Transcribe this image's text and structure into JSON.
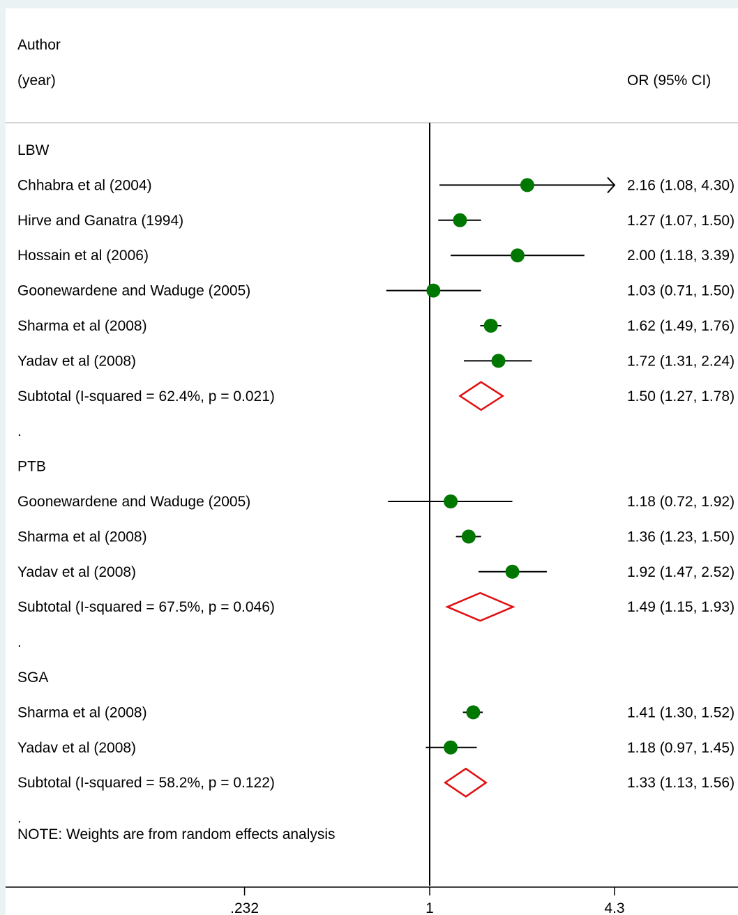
{
  "header": {
    "author_label": "Author",
    "year_label": "(year)",
    "or_label": "OR (95% CI)"
  },
  "note": "NOTE: Weights are from random effects analysis",
  "chart_data": {
    "type": "forest",
    "x_scale": "log",
    "xlim": [
      0.232,
      4.3
    ],
    "xticks": [
      {
        "value": 0.232,
        "label": ".232"
      },
      {
        "value": 1,
        "label": "1"
      },
      {
        "value": 4.3,
        "label": "4.3"
      }
    ],
    "null_line": 1,
    "colors": {
      "study_point": "#007700",
      "subtotal_diamond": "#e01010"
    },
    "rows": [
      {
        "kind": "group",
        "label": "LBW"
      },
      {
        "kind": "study",
        "label": "Chhabra et al (2004)",
        "est": 2.16,
        "lo": 1.08,
        "hi": 4.3,
        "ci_text": "2.16 (1.08, 4.30)",
        "arrow_right": true
      },
      {
        "kind": "study",
        "label": "Hirve and Ganatra (1994)",
        "est": 1.27,
        "lo": 1.07,
        "hi": 1.5,
        "ci_text": "1.27 (1.07, 1.50)"
      },
      {
        "kind": "study",
        "label": "Hossain et al (2006)",
        "est": 2.0,
        "lo": 1.18,
        "hi": 3.39,
        "ci_text": "2.00 (1.18, 3.39)"
      },
      {
        "kind": "study",
        "label": "Goonewardene and Waduge (2005)",
        "est": 1.03,
        "lo": 0.71,
        "hi": 1.5,
        "ci_text": "1.03 (0.71, 1.50)"
      },
      {
        "kind": "study",
        "label": "Sharma et al (2008)",
        "est": 1.62,
        "lo": 1.49,
        "hi": 1.76,
        "ci_text": "1.62 (1.49, 1.76)"
      },
      {
        "kind": "study",
        "label": "Yadav et al (2008)",
        "est": 1.72,
        "lo": 1.31,
        "hi": 2.24,
        "ci_text": "1.72 (1.31, 2.24)"
      },
      {
        "kind": "subtotal",
        "label": "Subtotal  (I-squared = 62.4%, p = 0.021)",
        "est": 1.5,
        "lo": 1.27,
        "hi": 1.78,
        "ci_text": "1.50 (1.27, 1.78)"
      },
      {
        "kind": "spacer",
        "label": "."
      },
      {
        "kind": "group",
        "label": "PTB"
      },
      {
        "kind": "study",
        "label": "Goonewardene and Waduge (2005)",
        "est": 1.18,
        "lo": 0.72,
        "hi": 1.92,
        "ci_text": "1.18 (0.72, 1.92)"
      },
      {
        "kind": "study",
        "label": "Sharma et al (2008)",
        "est": 1.36,
        "lo": 1.23,
        "hi": 1.5,
        "ci_text": "1.36 (1.23, 1.50)"
      },
      {
        "kind": "study",
        "label": "Yadav et al (2008)",
        "est": 1.92,
        "lo": 1.47,
        "hi": 2.52,
        "ci_text": "1.92 (1.47, 2.52)"
      },
      {
        "kind": "subtotal",
        "label": "Subtotal  (I-squared = 67.5%, p = 0.046)",
        "est": 1.49,
        "lo": 1.15,
        "hi": 1.93,
        "ci_text": "1.49 (1.15, 1.93)"
      },
      {
        "kind": "spacer",
        "label": "."
      },
      {
        "kind": "group",
        "label": "SGA"
      },
      {
        "kind": "study",
        "label": "Sharma et al (2008)",
        "est": 1.41,
        "lo": 1.3,
        "hi": 1.52,
        "ci_text": "1.41 (1.30, 1.52)"
      },
      {
        "kind": "study",
        "label": "Yadav et al (2008)",
        "est": 1.18,
        "lo": 0.97,
        "hi": 1.45,
        "ci_text": "1.18 (0.97, 1.45)"
      },
      {
        "kind": "subtotal",
        "label": "Subtotal  (I-squared = 58.2%, p = 0.122)",
        "est": 1.33,
        "lo": 1.13,
        "hi": 1.56,
        "ci_text": "1.33 (1.13, 1.56)"
      },
      {
        "kind": "spacer",
        "label": "."
      }
    ]
  }
}
